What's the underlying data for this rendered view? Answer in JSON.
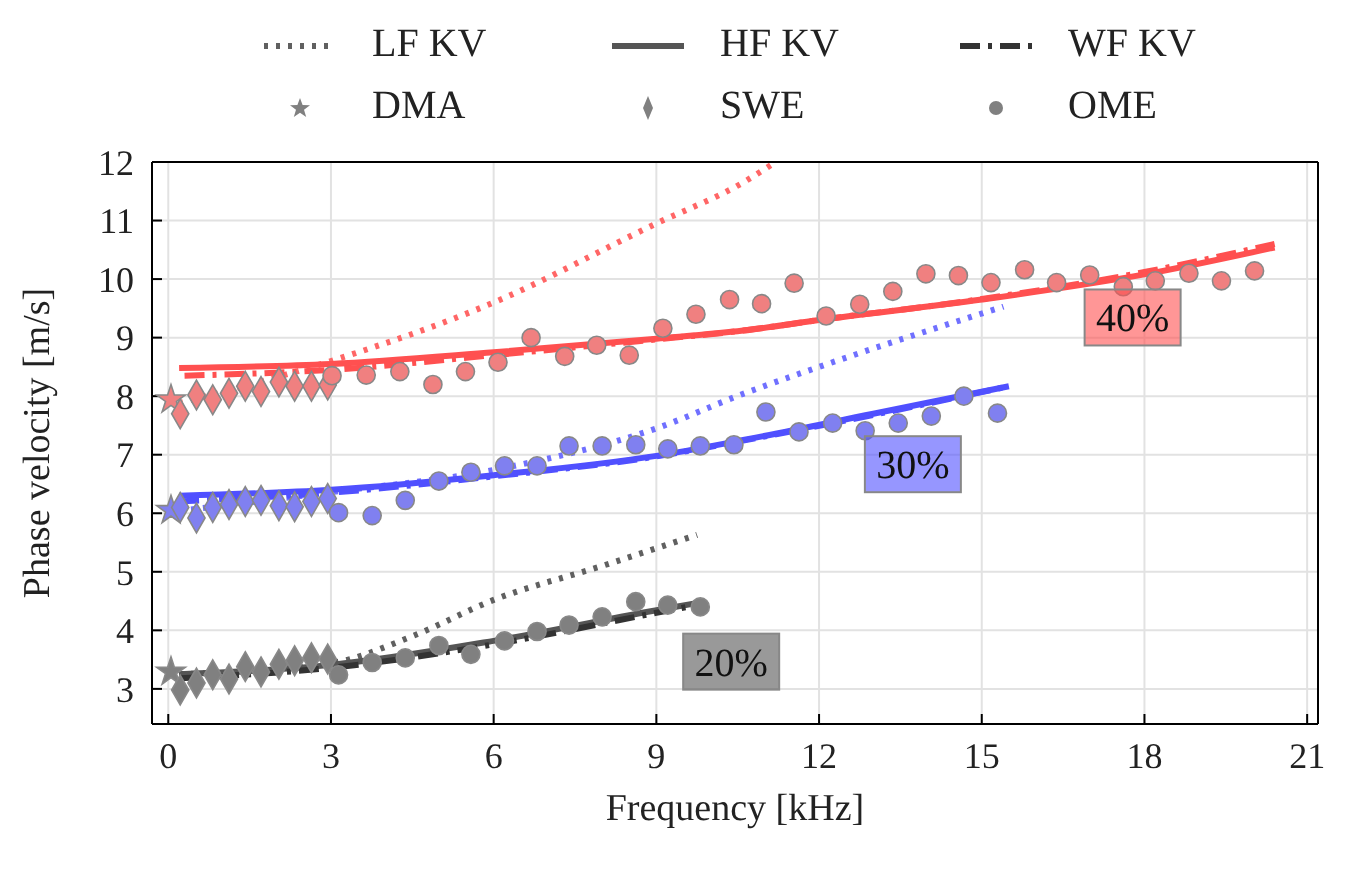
{
  "chart_data": {
    "type": "line",
    "xlabel": "Frequency [kHz]",
    "ylabel": "Phase velocity [m/s]",
    "xlim": [
      -0.3,
      21.2
    ],
    "xticks": [
      0,
      3,
      6,
      9,
      12,
      15,
      18,
      21
    ],
    "ylim": [
      2.4,
      12
    ],
    "yticks": [
      3,
      4,
      5,
      6,
      7,
      8,
      9,
      10,
      11,
      12
    ],
    "grid": true,
    "legend": "top",
    "series": [
      {
        "name": "LF KV",
        "line_style": "dotted",
        "color": "#606060",
        "x": [
          0.2,
          3,
          4.5,
          6,
          8,
          9.75
        ],
        "values": [
          3.25,
          3.44,
          3.9,
          4.52,
          5.1,
          5.63
        ]
      },
      {
        "name": "HF KV",
        "line_style": "solid",
        "color": "#555555",
        "x": [
          0.2,
          3,
          6,
          9.1,
          9.9
        ],
        "values": [
          3.25,
          3.41,
          3.82,
          4.36,
          4.49
        ]
      },
      {
        "name": "WF KV",
        "line_style": "dashed",
        "color": "#333333",
        "x": [
          0.2,
          3,
          6,
          9,
          9.9
        ],
        "values": [
          3.18,
          3.36,
          3.76,
          4.3,
          4.46
        ]
      },
      {
        "name": "DMA",
        "type": "scatter",
        "marker": "star",
        "color": "#808080",
        "x": [
          0.05
        ],
        "values": [
          3.29
        ]
      },
      {
        "name": "SWE",
        "type": "scatter",
        "marker": "diamond",
        "color": "#808080",
        "x": [
          0.22,
          0.52,
          0.82,
          1.12,
          1.42,
          1.71,
          2.04,
          2.33,
          2.64,
          2.94
        ],
        "values": [
          2.98,
          3.1,
          3.24,
          3.17,
          3.38,
          3.29,
          3.42,
          3.48,
          3.53,
          3.51
        ]
      },
      {
        "name": "OME",
        "type": "scatter",
        "marker": "circle",
        "color": "#808080",
        "x": [
          3.14,
          3.76,
          4.37,
          4.99,
          5.58,
          6.2,
          6.8,
          7.39,
          8.0,
          8.62,
          9.21,
          9.81
        ],
        "values": [
          3.24,
          3.45,
          3.53,
          3.74,
          3.59,
          3.82,
          3.98,
          4.09,
          4.23,
          4.49,
          4.43,
          4.4
        ]
      },
      {
        "type": "line",
        "line_style": "dotted",
        "color": "#7070ff",
        "x": [
          0.2,
          3,
          6,
          9,
          10.6,
          12,
          15.4
        ],
        "values": [
          6.04,
          6.36,
          6.74,
          7.45,
          8.04,
          8.5,
          9.53
        ]
      },
      {
        "type": "line",
        "line_style": "solid",
        "color": "#5050ff",
        "x": [
          0.2,
          3,
          6,
          9,
          10.6,
          13,
          15.5
        ],
        "values": [
          6.3,
          6.4,
          6.65,
          6.98,
          7.25,
          7.7,
          8.17
        ]
      },
      {
        "type": "line",
        "line_style": "dashed",
        "color": "#5050ff",
        "x": [
          0.2,
          3,
          6,
          9,
          10.6,
          13,
          15.5
        ],
        "values": [
          6.2,
          6.35,
          6.63,
          6.97,
          7.24,
          7.68,
          8.17
        ]
      },
      {
        "type": "scatter",
        "marker": "star",
        "color": "#8080f0",
        "x": [
          0.05
        ],
        "values": [
          6.05
        ]
      },
      {
        "type": "scatter",
        "marker": "diamond",
        "color": "#8080f0",
        "x": [
          0.22,
          0.52,
          0.82,
          1.12,
          1.42,
          1.71,
          2.04,
          2.33,
          2.64,
          2.94
        ],
        "values": [
          6.1,
          5.92,
          6.1,
          6.15,
          6.2,
          6.22,
          6.13,
          6.11,
          6.2,
          6.25
        ]
      },
      {
        "type": "scatter",
        "marker": "circle",
        "color": "#8080f0",
        "x": [
          3.14,
          3.76,
          4.37,
          4.99,
          5.58,
          6.2,
          6.8,
          7.39,
          8.0,
          8.62,
          9.21,
          9.81,
          10.43,
          11.02,
          11.63,
          12.25,
          12.85,
          13.46,
          14.07,
          14.67,
          15.29
        ],
        "values": [
          6.01,
          5.96,
          6.22,
          6.55,
          6.7,
          6.81,
          6.81,
          7.15,
          7.15,
          7.17,
          7.1,
          7.15,
          7.17,
          7.73,
          7.39,
          7.54,
          7.41,
          7.54,
          7.66,
          8.0,
          7.71
        ]
      },
      {
        "type": "line",
        "line_style": "dotted",
        "color": "#ff6666",
        "x": [
          0.2,
          3,
          6,
          9,
          10.6,
          11.2
        ],
        "values": [
          7.88,
          8.6,
          9.6,
          10.95,
          11.65,
          12.0
        ]
      },
      {
        "type": "line",
        "line_style": "solid",
        "color": "#ff5050",
        "x": [
          0.2,
          3,
          6,
          9,
          10.6,
          12,
          15,
          18,
          20.4
        ],
        "values": [
          8.48,
          8.55,
          8.75,
          8.98,
          9.12,
          9.3,
          9.65,
          10.08,
          10.54
        ]
      },
      {
        "type": "line",
        "line_style": "dashed",
        "color": "#ff5050",
        "x": [
          0.3,
          3,
          6,
          9,
          10.6,
          12,
          15,
          18,
          20.4
        ],
        "values": [
          8.35,
          8.45,
          8.7,
          8.97,
          9.12,
          9.3,
          9.66,
          10.12,
          10.6
        ]
      },
      {
        "type": "scatter",
        "marker": "star",
        "color": "#f08080",
        "x": [
          0.05
        ],
        "values": [
          7.94
        ]
      },
      {
        "type": "scatter",
        "marker": "diamond",
        "color": "#f08080",
        "x": [
          0.22,
          0.52,
          0.82,
          1.12,
          1.42,
          1.71,
          2.04,
          2.33,
          2.64,
          2.94
        ],
        "values": [
          7.7,
          8.02,
          7.94,
          8.05,
          8.17,
          8.08,
          8.24,
          8.17,
          8.17,
          8.19
        ]
      },
      {
        "type": "scatter",
        "marker": "circle",
        "color": "#f08080",
        "x": [
          3.02,
          3.65,
          4.27,
          4.88,
          5.48,
          6.08,
          6.69,
          7.31,
          7.9,
          8.5,
          9.12,
          9.73,
          10.35,
          10.94,
          11.54,
          12.13,
          12.75,
          13.36,
          13.97,
          14.57,
          15.17,
          15.79,
          16.38,
          16.99,
          17.61,
          18.2,
          18.82,
          19.42,
          20.03
        ],
        "values": [
          8.35,
          8.36,
          8.42,
          8.2,
          8.42,
          8.58,
          9.0,
          8.68,
          8.87,
          8.7,
          9.16,
          9.4,
          9.65,
          9.58,
          9.93,
          9.37,
          9.57,
          9.79,
          10.09,
          10.06,
          9.94,
          10.16,
          9.94,
          10.07,
          9.87,
          9.97,
          10.1,
          9.97,
          10.14
        ]
      }
    ],
    "annotations": [
      "20%",
      "30%",
      "40%"
    ]
  }
}
